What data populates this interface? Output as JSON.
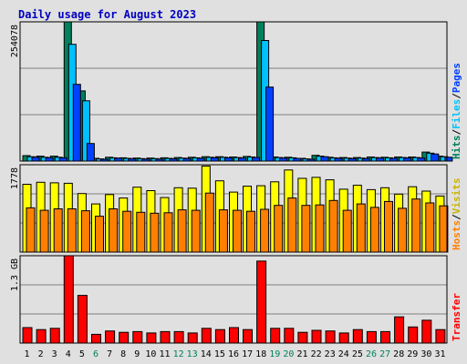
{
  "chart_data": [
    {
      "type": "bar",
      "title": "Daily usage for August 2023",
      "categories": [
        "1",
        "2",
        "3",
        "4",
        "5",
        "6",
        "7",
        "8",
        "9",
        "10",
        "11",
        "12",
        "13",
        "14",
        "15",
        "16",
        "17",
        "18",
        "19",
        "20",
        "21",
        "22",
        "23",
        "24",
        "25",
        "26",
        "27",
        "28",
        "29",
        "30",
        "31"
      ],
      "weekend_categories": [
        "6",
        "12",
        "13",
        "19",
        "20",
        "26",
        "27"
      ],
      "ylabel": "Hits/Files/Pages",
      "ylabel_parts": [
        "Hits",
        "/",
        "Files",
        "/",
        "Pages"
      ],
      "max_label": "254078",
      "ylim": [
        0,
        254078
      ],
      "grid": true,
      "series": [
        {
          "name": "Hits",
          "color": "#00805c",
          "values": [
            10000,
            9000,
            9000,
            254078,
            128000,
            5000,
            7000,
            6000,
            5500,
            5500,
            6000,
            6500,
            7000,
            8000,
            8000,
            7500,
            8500,
            254078,
            7500,
            7000,
            5000,
            10500,
            7000,
            6500,
            6500,
            7500,
            7000,
            7500,
            7500,
            16500,
            9000
          ]
        },
        {
          "name": "Files",
          "color": "#00c0ff",
          "values": [
            8000,
            7000,
            7000,
            213000,
            110000,
            4000,
            6000,
            5000,
            4500,
            4500,
            5000,
            5500,
            6000,
            7000,
            7000,
            6500,
            7500,
            220000,
            6500,
            6000,
            4000,
            9000,
            6000,
            5500,
            5500,
            6500,
            6000,
            6500,
            6500,
            14500,
            8000
          ]
        },
        {
          "name": "Pages",
          "color": "#0040ff",
          "values": [
            7000,
            6000,
            6000,
            140000,
            32000,
            3000,
            5000,
            4000,
            3500,
            3500,
            4000,
            4500,
            5000,
            6000,
            6000,
            5500,
            6500,
            135000,
            5500,
            5000,
            3000,
            8000,
            5000,
            4500,
            4500,
            5500,
            5000,
            5500,
            5500,
            13000,
            7000
          ]
        }
      ]
    },
    {
      "type": "bar",
      "ylabel": "Hosts/Visits",
      "ylabel_parts": [
        "Hosts",
        "/",
        "Visits"
      ],
      "max_label": "1778",
      "ylim": [
        0,
        1778
      ],
      "grid": true,
      "series": [
        {
          "name": "Visits",
          "color": "#ffff00",
          "values": [
            1380,
            1420,
            1410,
            1400,
            1190,
            980,
            1170,
            1100,
            1320,
            1250,
            1110,
            1310,
            1300,
            1750,
            1450,
            1220,
            1340,
            1350,
            1430,
            1670,
            1500,
            1520,
            1470,
            1280,
            1360,
            1270,
            1310,
            1180,
            1330,
            1240,
            1140
          ]
        },
        {
          "name": "Hosts",
          "color": "#ff8000",
          "values": [
            900,
            850,
            880,
            880,
            840,
            730,
            880,
            830,
            810,
            790,
            800,
            860,
            850,
            1200,
            860,
            850,
            830,
            870,
            950,
            1100,
            950,
            960,
            1050,
            850,
            980,
            910,
            1030,
            890,
            1080,
            1000,
            940
          ]
        }
      ]
    },
    {
      "type": "bar",
      "ylabel": "Transfer",
      "max_label": "1.3 GB",
      "ylim": [
        0,
        1.3
      ],
      "grid": true,
      "series": [
        {
          "name": "Transfer",
          "color": "#ff0000",
          "values": [
            0.23,
            0.2,
            0.22,
            1.3,
            0.71,
            0.13,
            0.18,
            0.16,
            0.17,
            0.15,
            0.17,
            0.17,
            0.15,
            0.22,
            0.2,
            0.23,
            0.2,
            1.22,
            0.22,
            0.22,
            0.16,
            0.19,
            0.18,
            0.15,
            0.2,
            0.17,
            0.17,
            0.39,
            0.24,
            0.34,
            0.2
          ]
        }
      ]
    }
  ]
}
